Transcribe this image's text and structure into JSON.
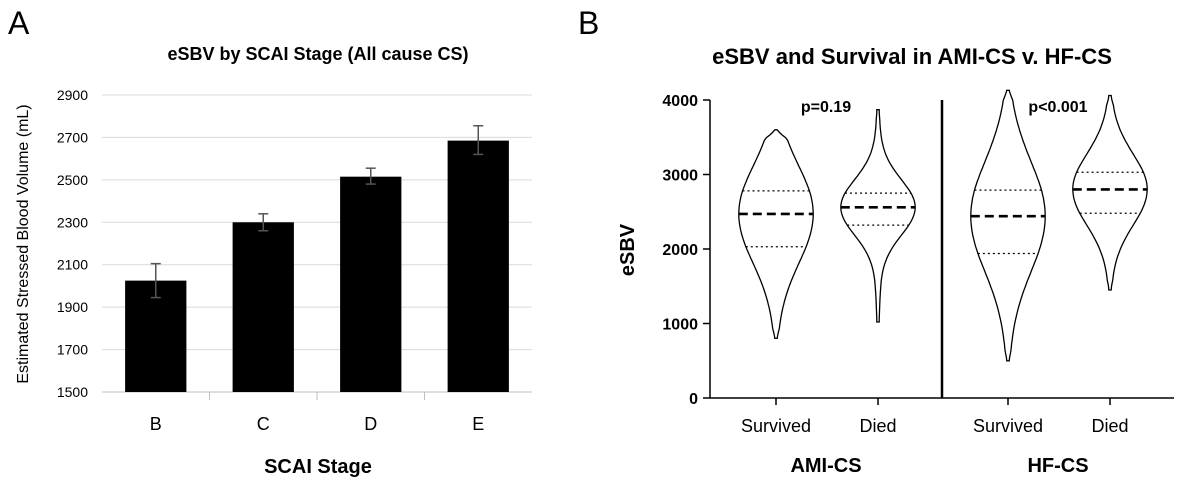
{
  "panel_a": {
    "letter": "A"
  },
  "panel_b": {
    "letter": "B"
  },
  "chart_data": [
    {
      "type": "bar",
      "title": "eSBV by SCAI Stage (All cause CS)",
      "xlabel": "SCAI Stage",
      "ylabel": "Estimated Stressed Blood Volume (mL)",
      "categories": [
        "B",
        "C",
        "D",
        "E"
      ],
      "values": [
        2025,
        2300,
        2515,
        2685
      ],
      "error_low": [
        1945,
        2260,
        2480,
        2620
      ],
      "error_high": [
        2105,
        2340,
        2555,
        2755
      ],
      "ylim": [
        1500,
        2900
      ],
      "yticks": [
        1500,
        1700,
        1900,
        2100,
        2300,
        2500,
        2700,
        2900
      ],
      "grid": "horizontal",
      "bar_color": "#000000"
    },
    {
      "type": "violin",
      "title": "eSBV and Survival in AMI-CS v. HF-CS",
      "ylabel": "eSBV",
      "ylim": [
        0,
        4000
      ],
      "yticks": [
        0,
        1000,
        2000,
        3000,
        4000
      ],
      "groups": [
        {
          "name": "AMI-CS",
          "p_value": "p=0.19",
          "categories": [
            "Survived",
            "Died"
          ]
        },
        {
          "name": "HF-CS",
          "p_value": "p<0.001",
          "categories": [
            "Survived",
            "Died"
          ]
        }
      ],
      "series": [
        {
          "group": "AMI-CS",
          "category": "Survived",
          "min": 800,
          "max": 3600,
          "median": 2470,
          "q1": 2030,
          "q3": 2780
        },
        {
          "group": "AMI-CS",
          "category": "Died",
          "min": 1020,
          "max": 3870,
          "median": 2560,
          "q1": 2320,
          "q3": 2750
        },
        {
          "group": "HF-CS",
          "category": "Survived",
          "min": 500,
          "max": 4130,
          "median": 2440,
          "q1": 1940,
          "q3": 2790
        },
        {
          "group": "HF-CS",
          "category": "Died",
          "min": 1450,
          "max": 4060,
          "median": 2800,
          "q1": 2480,
          "q3": 3030
        }
      ]
    }
  ]
}
